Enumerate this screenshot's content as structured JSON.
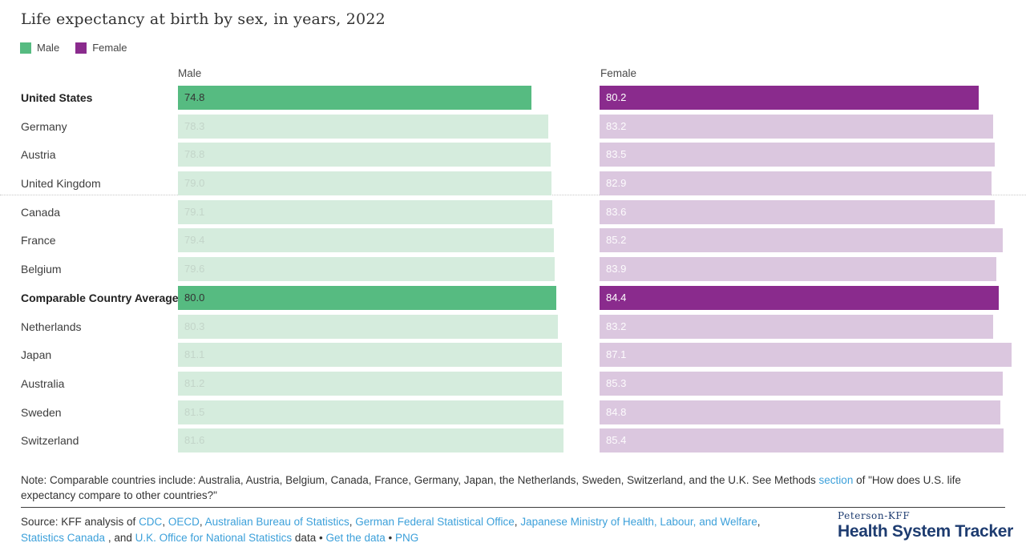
{
  "title": "Life expectancy at birth by sex, in years, 2022",
  "legend": [
    {
      "label": "Male",
      "color": "#56bb81"
    },
    {
      "label": "Female",
      "color": "#8a2b8d"
    }
  ],
  "columns": {
    "male_header": "Male",
    "female_header": "Female"
  },
  "colors": {
    "male_highlight": "#56bb81",
    "male_muted": "#d5ecdd",
    "female_highlight": "#8a2b8d",
    "female_muted": "#dbc7df",
    "link_blue": "#3ca0da",
    "logo_navy": "#1e3c70"
  },
  "chart_data": {
    "type": "bar",
    "orientation": "horizontal",
    "title": "Life expectancy at birth by sex, in years, 2022",
    "unit": "years",
    "categories": [
      "United States",
      "Germany",
      "Austria",
      "United Kingdom",
      "Canada",
      "France",
      "Belgium",
      "Comparable Country Average",
      "Netherlands",
      "Japan",
      "Australia",
      "Sweden",
      "Switzerland"
    ],
    "series": [
      {
        "name": "Male",
        "values": [
          74.8,
          78.3,
          78.8,
          79.0,
          79.1,
          79.4,
          79.6,
          80.0,
          80.3,
          81.1,
          81.2,
          81.5,
          81.6
        ]
      },
      {
        "name": "Female",
        "values": [
          80.2,
          83.2,
          83.5,
          82.9,
          83.6,
          85.2,
          83.9,
          84.4,
          83.2,
          87.1,
          85.3,
          84.8,
          85.4
        ]
      }
    ],
    "highlighted_categories": [
      "United States",
      "Comparable Country Average"
    ],
    "value_labels": true,
    "xlim": [
      0,
      88
    ],
    "legend_position": "top-left",
    "grid": false
  },
  "note": {
    "segments": [
      {
        "text": "Note: Comparable countries include: Australia, Austria, Belgium, Canada, France, Germany, Japan, the Netherlands, Sweden, Switzerland, and the U.K. See Methods ",
        "link": false
      },
      {
        "text": "section",
        "link": true,
        "name": "methods-section-link"
      },
      {
        "text": " of \"How does U.S. life expectancy compare to other countries?\"",
        "link": false
      }
    ]
  },
  "source": {
    "segments": [
      {
        "text": "Source: KFF analysis of ",
        "link": false
      },
      {
        "text": "CDC",
        "link": true,
        "name": "cdc-link"
      },
      {
        "text": ", ",
        "link": false
      },
      {
        "text": "OECD",
        "link": true,
        "name": "oecd-link"
      },
      {
        "text": ", ",
        "link": false
      },
      {
        "text": "Australian Bureau of Statistics",
        "link": true,
        "name": "abs-link"
      },
      {
        "text": ", ",
        "link": false
      },
      {
        "text": "German Federal Statistical Office",
        "link": true,
        "name": "german-statistical-office-link"
      },
      {
        "text": ", ",
        "link": false
      },
      {
        "text": "Japanese Ministry of Health, Labour, and Welfare",
        "link": true,
        "name": "japanese-ministry-link"
      },
      {
        "text": ", ",
        "link": false
      },
      {
        "text": "Statistics Canada",
        "link": true,
        "name": "statistics-canada-link"
      },
      {
        "text": " , and ",
        "link": false
      },
      {
        "text": "U.K. Office for National Statistics",
        "link": true,
        "name": "uk-ons-link"
      },
      {
        "text": " data • ",
        "link": false
      },
      {
        "text": "Get the data",
        "link": true,
        "name": "get-the-data-link"
      },
      {
        "text": " • ",
        "link": false
      },
      {
        "text": "PNG",
        "link": true,
        "name": "png-link"
      }
    ]
  },
  "footer_logo": {
    "top": "Peterson-KFF",
    "bottom": "Health System Tracker"
  }
}
